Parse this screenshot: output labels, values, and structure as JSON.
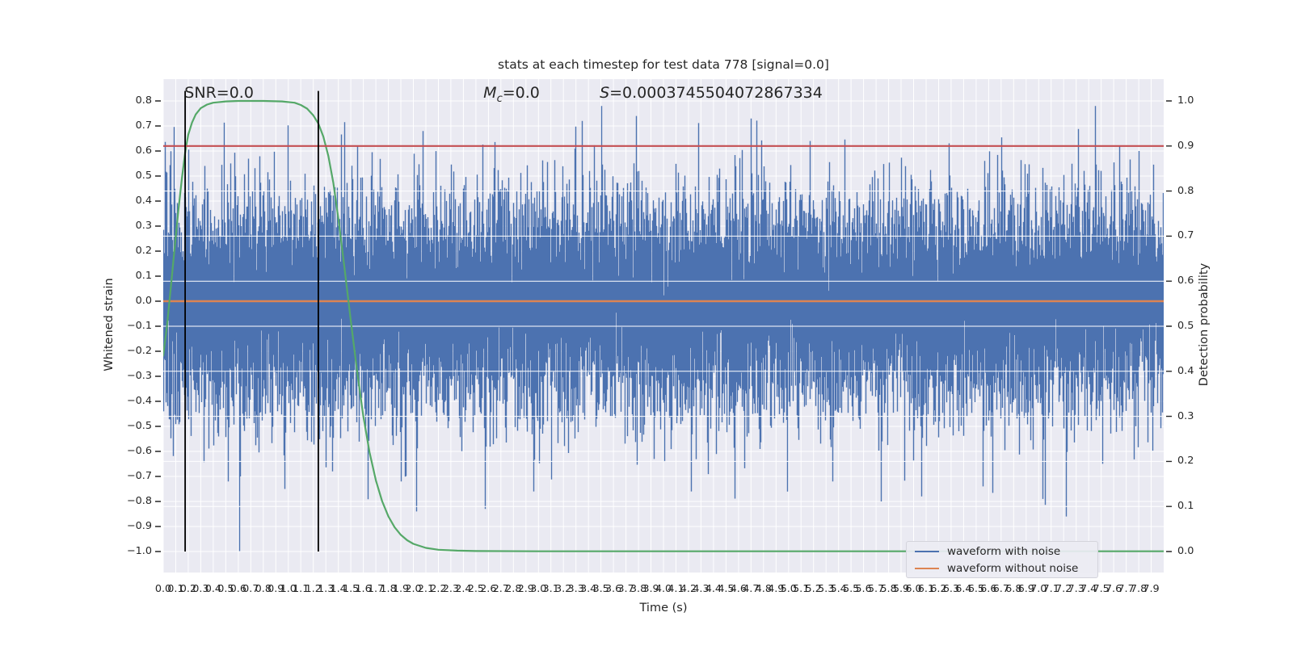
{
  "page": {
    "background": "#ffffff"
  },
  "colors": {
    "axes_background": "#eaeaf2",
    "grid": "#ffffff",
    "text": "#262626",
    "blue": "#4c72b0",
    "orange": "#dd8452",
    "green": "#55a868",
    "red": "#c44e52",
    "vline_black": "#000000"
  },
  "chart_data": {
    "type": "line",
    "title": "stats at each timestep for test data 778 [signal=0.0]",
    "xlabel": "Time (s)",
    "ylabel_left": "Whitened strain",
    "ylabel_right": "Detection probability",
    "xlim": [
      0.0,
      8.0
    ],
    "ylim_left": [
      -1.084,
      0.887
    ],
    "ylim_right": [
      -0.047,
      1.048
    ],
    "grid": true,
    "xtick_labels": [
      "0.0",
      "0.1",
      "0.2",
      "0.3",
      "0.4",
      "0.5",
      "0.6",
      "0.7",
      "0.8",
      "0.9",
      "1.0",
      "1.1",
      "1.2",
      "1.3",
      "1.4",
      "1.5",
      "1.6",
      "1.7",
      "1.8",
      "1.9",
      "2.0",
      "2.1",
      "2.2",
      "2.3",
      "2.4",
      "2.5",
      "2.6",
      "2.7",
      "2.8",
      "2.9",
      "3.0",
      "3.1",
      "3.2",
      "3.3",
      "3.4",
      "3.5",
      "3.6",
      "3.7",
      "3.8",
      "3.9",
      "4.0",
      "4.1",
      "4.2",
      "4.3",
      "4.4",
      "4.5",
      "4.6",
      "4.7",
      "4.8",
      "4.9",
      "5.0",
      "5.1",
      "5.2",
      "5.3",
      "5.4",
      "5.5",
      "5.6",
      "5.7",
      "5.8",
      "5.9",
      "6.0",
      "6.1",
      "6.2",
      "6.3",
      "6.4",
      "6.5",
      "6.6",
      "6.7",
      "6.8",
      "6.9",
      "7.0",
      "7.1",
      "7.2",
      "7.3",
      "7.4",
      "7.5",
      "7.6",
      "7.7",
      "7.8",
      "7.9"
    ],
    "ytick_labels_left": [
      "0.8",
      "0.7",
      "0.6",
      "0.5",
      "0.4",
      "0.3",
      "0.2",
      "0.1",
      "0.0",
      "−0.1",
      "−0.2",
      "−0.3",
      "−0.4",
      "−0.5",
      "−0.6",
      "−0.7",
      "−0.8",
      "−0.9",
      "−1.0"
    ],
    "ytick_labels_right": [
      "1.0",
      "0.9",
      "0.8",
      "0.7",
      "0.6",
      "0.5",
      "0.4",
      "0.3",
      "0.2",
      "0.1",
      "0.0"
    ],
    "annotations": [
      {
        "id": "snr",
        "text": "SNR=0.0",
        "x": 0.17,
        "y": 0.8
      },
      {
        "id": "mc",
        "prefix": "M",
        "sub": "c",
        "rest": "=0.0",
        "x": 2.56,
        "y": 0.8
      },
      {
        "id": "s",
        "prefix": "S",
        "sub": "",
        "rest": "=0.0003745504072867334",
        "x": 3.49,
        "y": 0.8
      }
    ],
    "series": [
      {
        "name": "waveform with noise",
        "color": "#4c72b0",
        "axis": "left",
        "kind": "gaussian-noise",
        "seed": 778,
        "sigma": 0.2,
        "samples_per_column": 13,
        "negative_skew": 1.08,
        "clip": [
          -1.02,
          0.805
        ],
        "notable_extremes": [
          [
            0.61,
            -1.0
          ],
          [
            0.52,
            -0.72
          ],
          [
            0.97,
            -0.75
          ],
          [
            1.35,
            -0.68
          ],
          [
            1.9,
            -0.72
          ],
          [
            2.02,
            -0.84
          ],
          [
            2.57,
            -0.83
          ],
          [
            2.96,
            -0.76
          ],
          [
            3.35,
            0.72
          ],
          [
            3.5,
            0.78
          ],
          [
            3.78,
            0.74
          ],
          [
            4.22,
            -0.76
          ],
          [
            4.7,
            0.73
          ],
          [
            5.35,
            -0.72
          ],
          [
            5.74,
            -0.8
          ],
          [
            6.06,
            -0.78
          ],
          [
            6.55,
            -0.74
          ],
          [
            7.03,
            -0.79
          ],
          [
            7.22,
            -0.86
          ],
          [
            7.45,
            0.78
          ]
        ]
      },
      {
        "name": "waveform without noise",
        "color": "#dd8452",
        "axis": "left",
        "kind": "hline",
        "value": 0.0
      },
      {
        "name": "detection probability",
        "color": "#55a868",
        "axis": "right",
        "kind": "curve",
        "points": [
          [
            0.0,
            0.435
          ],
          [
            0.03,
            0.5
          ],
          [
            0.06,
            0.585
          ],
          [
            0.09,
            0.67
          ],
          [
            0.12,
            0.755
          ],
          [
            0.15,
            0.83
          ],
          [
            0.175,
            0.885
          ],
          [
            0.2,
            0.925
          ],
          [
            0.23,
            0.952
          ],
          [
            0.26,
            0.97
          ],
          [
            0.3,
            0.984
          ],
          [
            0.35,
            0.992
          ],
          [
            0.4,
            0.996
          ],
          [
            0.5,
            0.999
          ],
          [
            0.6,
            1.0
          ],
          [
            0.8,
            1.0
          ],
          [
            0.95,
            0.999
          ],
          [
            1.05,
            0.996
          ],
          [
            1.1,
            0.991
          ],
          [
            1.15,
            0.983
          ],
          [
            1.2,
            0.968
          ],
          [
            1.24,
            0.95
          ],
          [
            1.28,
            0.921
          ],
          [
            1.32,
            0.878
          ],
          [
            1.36,
            0.818
          ],
          [
            1.4,
            0.74
          ],
          [
            1.45,
            0.628
          ],
          [
            1.5,
            0.512
          ],
          [
            1.55,
            0.4
          ],
          [
            1.6,
            0.3
          ],
          [
            1.65,
            0.22
          ],
          [
            1.7,
            0.158
          ],
          [
            1.75,
            0.112
          ],
          [
            1.8,
            0.078
          ],
          [
            1.85,
            0.054
          ],
          [
            1.9,
            0.037
          ],
          [
            1.95,
            0.025
          ],
          [
            2.0,
            0.017
          ],
          [
            2.1,
            0.008
          ],
          [
            2.2,
            0.004
          ],
          [
            2.35,
            0.002
          ],
          [
            2.5,
            0.001
          ],
          [
            3.0,
            0.0005
          ],
          [
            8.0,
            0.0005
          ]
        ]
      },
      {
        "name": "detection threshold",
        "color": "#c44e52",
        "axis": "right",
        "kind": "hline",
        "value": 0.9
      }
    ],
    "vlines": {
      "color": "#000000",
      "x": [
        0.175,
        1.24
      ],
      "ymin": -1.0,
      "ymax": 0.84
    },
    "legend": {
      "position": "lower right",
      "items": [
        {
          "label": "waveform with noise",
          "color": "#4c72b0"
        },
        {
          "label": "waveform without noise",
          "color": "#dd8452"
        }
      ]
    }
  }
}
